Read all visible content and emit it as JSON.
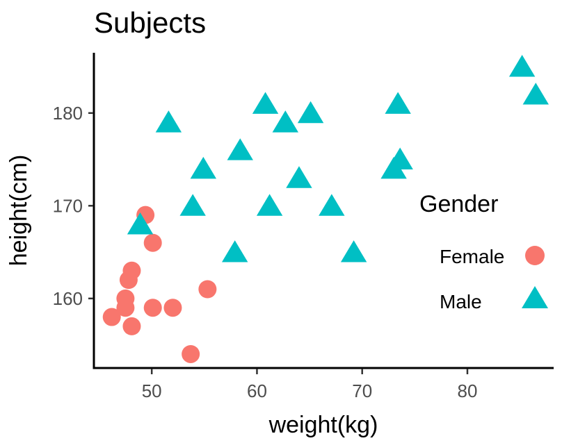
{
  "chart_data": {
    "type": "scatter",
    "title": "Subjects",
    "xlabel": "weight(kg)",
    "ylabel": "height(cm)",
    "xlim": [
      44.5,
      88.2
    ],
    "ylim": [
      152.5,
      186.5
    ],
    "x_ticks": [
      50,
      60,
      70,
      80
    ],
    "y_ticks": [
      160,
      170,
      180
    ],
    "grid": false,
    "legend": {
      "title": "Gender",
      "position": "right",
      "entries": [
        {
          "label": "Female",
          "shape": "circle",
          "color": "#F8766D"
        },
        {
          "label": "Male",
          "shape": "triangle",
          "color": "#00BFC4"
        }
      ]
    },
    "series": [
      {
        "name": "Female",
        "shape": "circle",
        "color": "#F8766D",
        "points": [
          {
            "x": 46.2,
            "y": 158
          },
          {
            "x": 47.5,
            "y": 160
          },
          {
            "x": 47.5,
            "y": 159
          },
          {
            "x": 47.8,
            "y": 162
          },
          {
            "x": 48.1,
            "y": 163
          },
          {
            "x": 48.1,
            "y": 157
          },
          {
            "x": 49.4,
            "y": 169
          },
          {
            "x": 50.1,
            "y": 166
          },
          {
            "x": 50.1,
            "y": 159
          },
          {
            "x": 52.0,
            "y": 159
          },
          {
            "x": 53.7,
            "y": 154
          },
          {
            "x": 55.3,
            "y": 161
          }
        ]
      },
      {
        "name": "Male",
        "shape": "triangle",
        "color": "#00BFC4",
        "points": [
          {
            "x": 48.9,
            "y": 168
          },
          {
            "x": 51.6,
            "y": 179
          },
          {
            "x": 53.9,
            "y": 170
          },
          {
            "x": 54.9,
            "y": 174
          },
          {
            "x": 57.9,
            "y": 165
          },
          {
            "x": 58.4,
            "y": 176
          },
          {
            "x": 60.8,
            "y": 181
          },
          {
            "x": 61.2,
            "y": 170
          },
          {
            "x": 62.7,
            "y": 179
          },
          {
            "x": 64.0,
            "y": 173
          },
          {
            "x": 65.1,
            "y": 180
          },
          {
            "x": 67.1,
            "y": 170
          },
          {
            "x": 69.2,
            "y": 165
          },
          {
            "x": 73.0,
            "y": 174
          },
          {
            "x": 73.4,
            "y": 181
          },
          {
            "x": 73.6,
            "y": 175
          },
          {
            "x": 85.2,
            "y": 185
          },
          {
            "x": 86.5,
            "y": 182
          }
        ]
      }
    ]
  }
}
